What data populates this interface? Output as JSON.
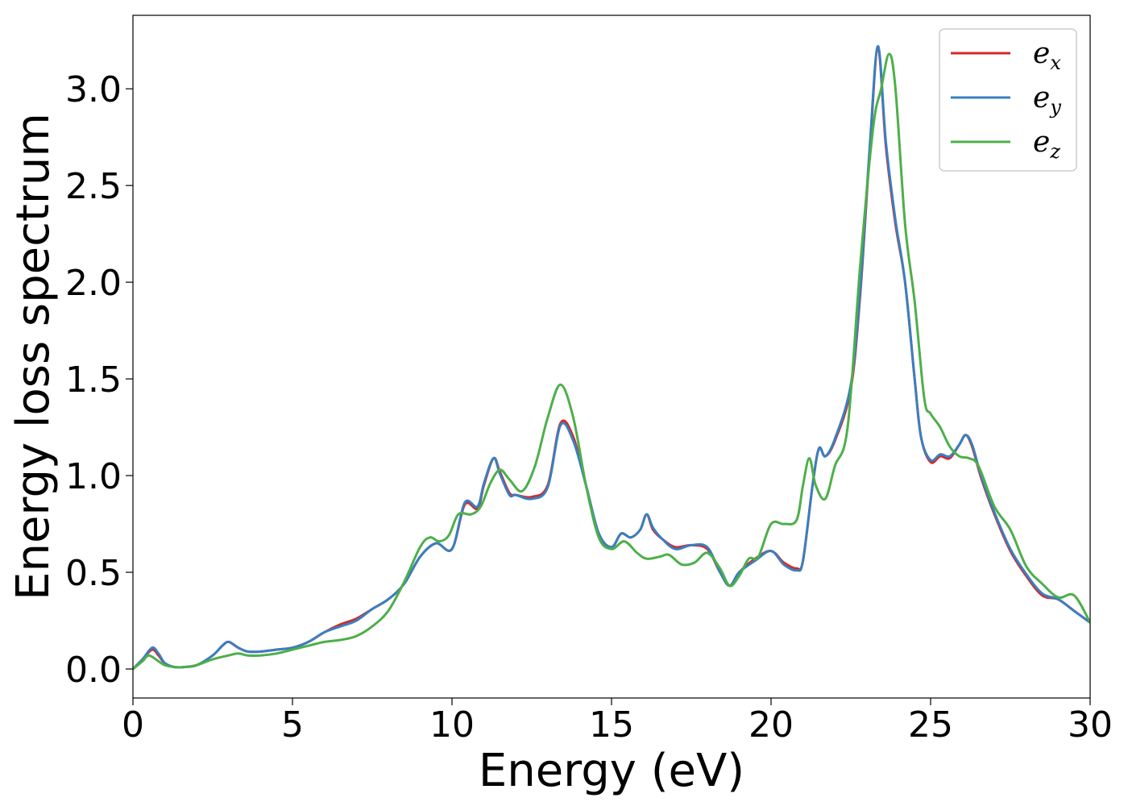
{
  "chart_data": {
    "type": "line",
    "title": "",
    "xlabel": "Energy (eV)",
    "ylabel": "Energy loss spectrum",
    "xlim": [
      0,
      30
    ],
    "ylim": [
      -0.15,
      3.38
    ],
    "xticks": [
      0,
      5,
      10,
      15,
      20,
      25,
      30
    ],
    "xtick_labels": [
      "0",
      "5",
      "10",
      "15",
      "20",
      "25",
      "30"
    ],
    "yticks": [
      0.0,
      0.5,
      1.0,
      1.5,
      2.0,
      2.5,
      3.0
    ],
    "ytick_labels": [
      "0.0",
      "0.5",
      "1.0",
      "1.5",
      "2.0",
      "2.5",
      "3.0"
    ],
    "grid": false,
    "legend_position": "top-right",
    "series": [
      {
        "name": "e",
        "subscript": "x",
        "color": "#d62728",
        "x": [
          0,
          0.3,
          0.6,
          0.8,
          1.0,
          1.3,
          1.6,
          2.0,
          2.5,
          2.8,
          3.0,
          3.3,
          3.6,
          4.0,
          4.5,
          5.0,
          5.5,
          6.0,
          6.5,
          7.0,
          7.5,
          8.0,
          8.5,
          9.0,
          9.5,
          10.0,
          10.4,
          10.8,
          11.0,
          11.3,
          11.5,
          11.8,
          12.0,
          12.5,
          13.0,
          13.4,
          13.8,
          14.2,
          14.6,
          15.0,
          15.3,
          15.6,
          15.9,
          16.1,
          16.3,
          16.6,
          17.0,
          17.5,
          18.0,
          18.4,
          18.7,
          19.0,
          19.5,
          20.0,
          20.4,
          20.8,
          21.0,
          21.3,
          21.5,
          21.7,
          22.0,
          22.5,
          22.8,
          23.1,
          23.35,
          23.6,
          23.9,
          24.2,
          24.5,
          24.7,
          25.0,
          25.3,
          25.6,
          25.9,
          26.1,
          26.3,
          26.6,
          27.0,
          27.5,
          28.0,
          28.5,
          29.0,
          29.5,
          30.0
        ],
        "values": [
          0.0,
          0.05,
          0.1,
          0.07,
          0.03,
          0.01,
          0.01,
          0.02,
          0.07,
          0.12,
          0.14,
          0.11,
          0.09,
          0.09,
          0.1,
          0.11,
          0.14,
          0.19,
          0.23,
          0.26,
          0.31,
          0.36,
          0.44,
          0.58,
          0.65,
          0.62,
          0.85,
          0.83,
          0.95,
          1.09,
          1.02,
          0.91,
          0.9,
          0.89,
          0.95,
          1.27,
          1.2,
          0.95,
          0.7,
          0.63,
          0.7,
          0.68,
          0.72,
          0.8,
          0.72,
          0.67,
          0.63,
          0.64,
          0.62,
          0.5,
          0.43,
          0.5,
          0.57,
          0.61,
          0.55,
          0.52,
          0.56,
          0.95,
          1.14,
          1.1,
          1.18,
          1.45,
          1.95,
          2.7,
          3.21,
          2.7,
          2.3,
          2.0,
          1.5,
          1.2,
          1.07,
          1.1,
          1.09,
          1.16,
          1.21,
          1.15,
          0.98,
          0.8,
          0.61,
          0.48,
          0.38,
          0.36,
          0.3,
          0.24
        ]
      },
      {
        "name": "e",
        "subscript": "y",
        "color": "#3a7fbf",
        "x": [
          0,
          0.3,
          0.6,
          0.8,
          1.0,
          1.3,
          1.6,
          2.0,
          2.5,
          2.8,
          3.0,
          3.3,
          3.6,
          4.0,
          4.5,
          5.0,
          5.5,
          6.0,
          6.5,
          7.0,
          7.5,
          8.0,
          8.5,
          9.0,
          9.5,
          10.0,
          10.4,
          10.8,
          11.0,
          11.3,
          11.5,
          11.8,
          12.0,
          12.5,
          13.0,
          13.4,
          13.8,
          14.2,
          14.6,
          15.0,
          15.3,
          15.6,
          15.9,
          16.1,
          16.3,
          16.6,
          17.0,
          17.5,
          18.0,
          18.4,
          18.7,
          19.0,
          19.5,
          20.0,
          20.4,
          20.8,
          21.0,
          21.3,
          21.5,
          21.7,
          22.0,
          22.5,
          22.8,
          23.1,
          23.35,
          23.6,
          23.9,
          24.2,
          24.5,
          24.7,
          25.0,
          25.3,
          25.6,
          25.9,
          26.1,
          26.3,
          26.6,
          27.0,
          27.5,
          28.0,
          28.5,
          29.0,
          29.5,
          30.0
        ],
        "values": [
          0.0,
          0.05,
          0.11,
          0.08,
          0.03,
          0.01,
          0.01,
          0.02,
          0.07,
          0.12,
          0.14,
          0.11,
          0.09,
          0.09,
          0.1,
          0.11,
          0.14,
          0.19,
          0.22,
          0.25,
          0.31,
          0.36,
          0.44,
          0.58,
          0.65,
          0.62,
          0.86,
          0.84,
          0.96,
          1.09,
          1.01,
          0.9,
          0.9,
          0.88,
          0.94,
          1.26,
          1.18,
          0.95,
          0.7,
          0.63,
          0.7,
          0.68,
          0.72,
          0.8,
          0.73,
          0.67,
          0.62,
          0.64,
          0.63,
          0.5,
          0.43,
          0.5,
          0.56,
          0.61,
          0.54,
          0.51,
          0.56,
          0.95,
          1.14,
          1.1,
          1.19,
          1.47,
          1.97,
          2.72,
          3.22,
          2.72,
          2.32,
          2.0,
          1.5,
          1.2,
          1.08,
          1.11,
          1.1,
          1.16,
          1.21,
          1.16,
          0.99,
          0.81,
          0.62,
          0.49,
          0.39,
          0.36,
          0.3,
          0.24
        ]
      },
      {
        "name": "e",
        "subscript": "z",
        "color": "#4daf4a",
        "x": [
          0,
          0.3,
          0.5,
          0.8,
          1.0,
          1.3,
          1.6,
          2.0,
          2.5,
          3.0,
          3.3,
          3.6,
          4.0,
          4.5,
          5.0,
          5.5,
          6.0,
          6.5,
          7.0,
          7.5,
          8.0,
          8.5,
          9.0,
          9.3,
          9.6,
          9.9,
          10.2,
          10.6,
          10.9,
          11.2,
          11.5,
          11.8,
          12.2,
          12.6,
          13.0,
          13.4,
          13.8,
          14.2,
          14.6,
          15.0,
          15.4,
          15.8,
          16.1,
          16.5,
          16.8,
          17.2,
          17.6,
          18.0,
          18.4,
          18.7,
          19.0,
          19.3,
          19.6,
          20.0,
          20.4,
          20.8,
          21.0,
          21.2,
          21.4,
          21.7,
          22.0,
          22.4,
          22.8,
          23.2,
          23.45,
          23.7,
          23.9,
          24.2,
          24.5,
          24.8,
          25.0,
          25.3,
          25.6,
          25.9,
          26.2,
          26.5,
          27.0,
          27.5,
          28.0,
          28.5,
          29.0,
          29.5,
          30.0
        ],
        "values": [
          0.0,
          0.04,
          0.07,
          0.04,
          0.02,
          0.01,
          0.01,
          0.02,
          0.05,
          0.07,
          0.08,
          0.07,
          0.07,
          0.08,
          0.1,
          0.12,
          0.14,
          0.15,
          0.17,
          0.22,
          0.3,
          0.45,
          0.63,
          0.68,
          0.66,
          0.69,
          0.8,
          0.8,
          0.84,
          0.96,
          1.03,
          0.98,
          0.92,
          1.05,
          1.3,
          1.47,
          1.3,
          0.95,
          0.68,
          0.62,
          0.66,
          0.6,
          0.57,
          0.58,
          0.59,
          0.54,
          0.55,
          0.6,
          0.52,
          0.43,
          0.48,
          0.57,
          0.58,
          0.75,
          0.75,
          0.77,
          0.95,
          1.09,
          0.95,
          0.88,
          1.05,
          1.25,
          2.1,
          2.8,
          3.0,
          3.18,
          3.0,
          2.3,
          1.9,
          1.4,
          1.32,
          1.25,
          1.15,
          1.1,
          1.09,
          1.05,
          0.84,
          0.72,
          0.53,
          0.44,
          0.37,
          0.38,
          0.24
        ]
      }
    ]
  }
}
